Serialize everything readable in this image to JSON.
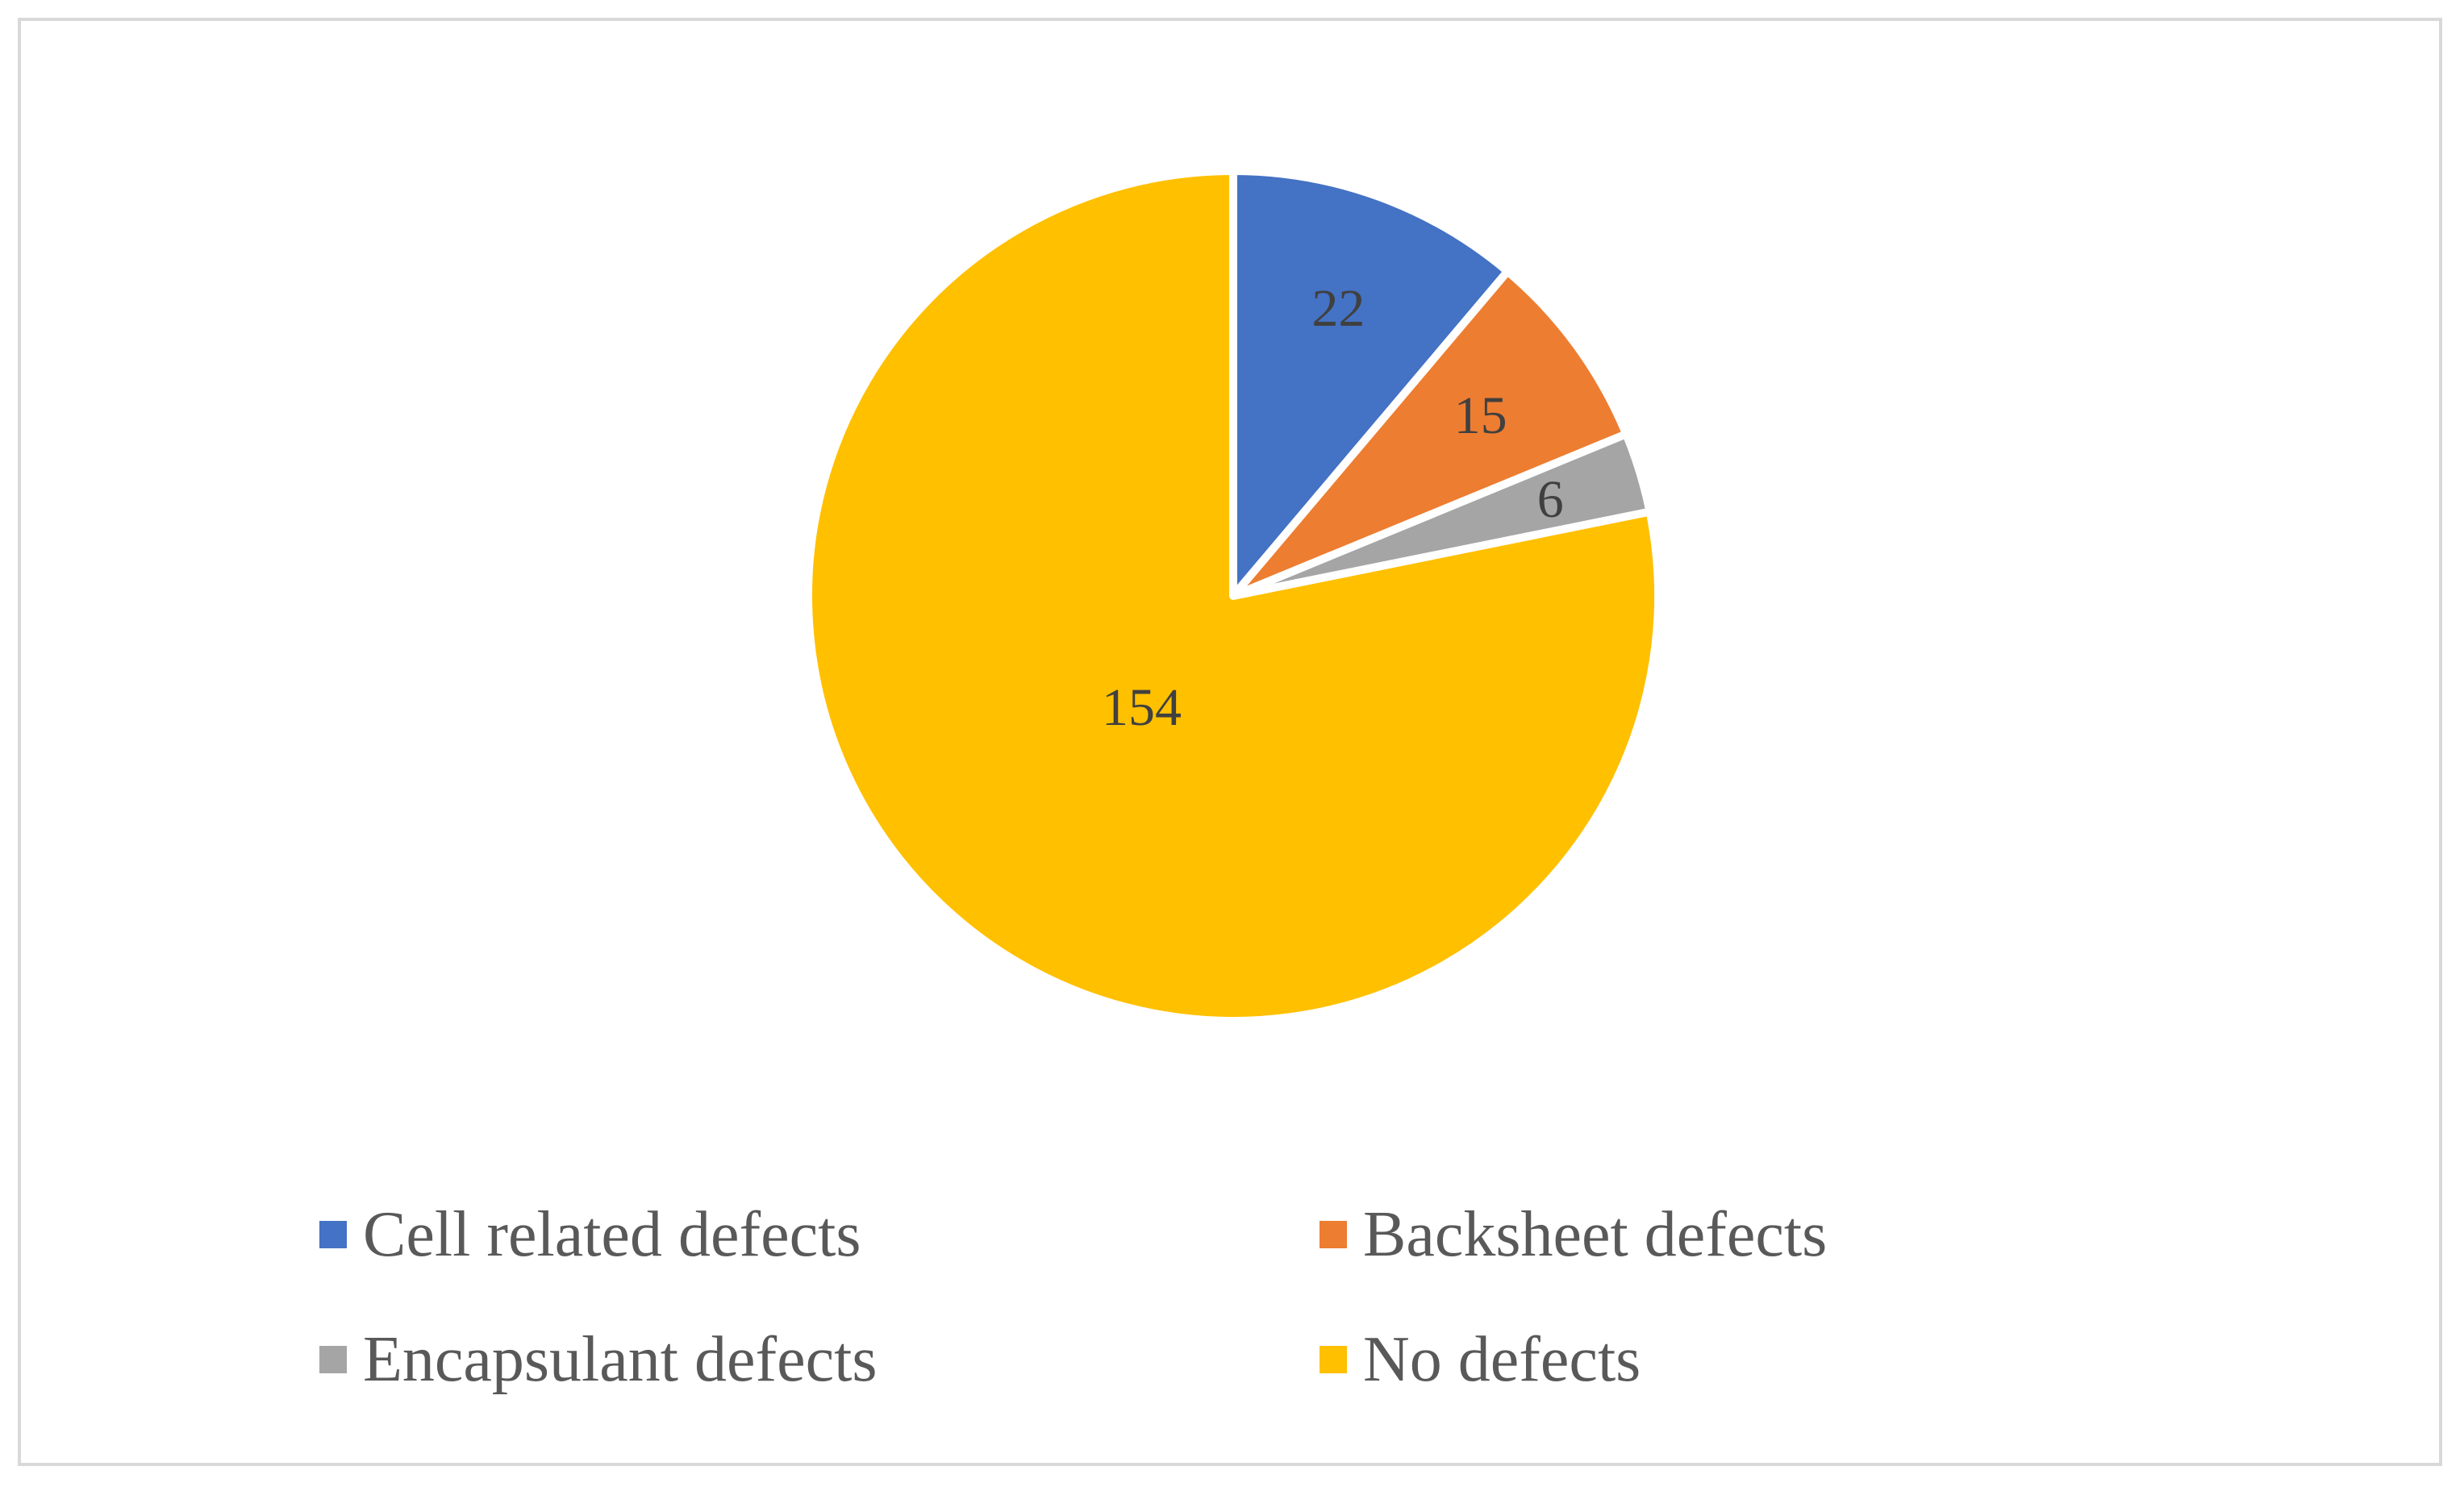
{
  "chart_data": {
    "type": "pie",
    "title": "",
    "categories": [
      "Cell related defects",
      "Backsheet defects",
      "Encapsulant defects",
      "No defects"
    ],
    "values": [
      22,
      15,
      6,
      154
    ],
    "colors": [
      "#4472c4",
      "#ed7d31",
      "#a5a5a5",
      "#ffc000"
    ],
    "data_labels": [
      "22",
      "15",
      "6",
      "154"
    ],
    "start_angle_deg": 0,
    "direction": "clockwise",
    "legend_position": "bottom"
  },
  "legend": {
    "items": [
      {
        "label": "Cell related defects",
        "color": "#4472c4"
      },
      {
        "label": "Backsheet defects",
        "color": "#ed7d31"
      },
      {
        "label": "Encapsulant defects",
        "color": "#a5a5a5"
      },
      {
        "label": "No defects",
        "color": "#ffc000"
      }
    ]
  }
}
